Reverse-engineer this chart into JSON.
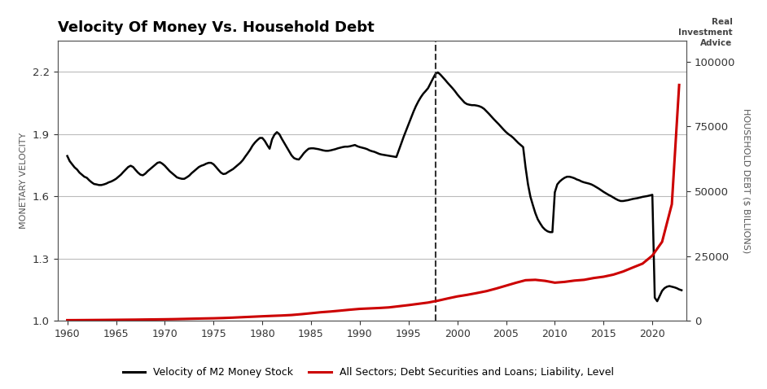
{
  "title": "Velocity Of Money Vs. Household Debt",
  "ylabel_left": "MONETARY VELOCITY",
  "ylabel_right": "HOUSEHOLD DEBT ($ BILLIONS)",
  "dashed_line_x": 1997.75,
  "ylim_left": [
    1.0,
    2.35
  ],
  "ylim_right": [
    0,
    108000
  ],
  "yticks_left": [
    1.0,
    1.3,
    1.6,
    1.9,
    2.2
  ],
  "yticks_right": [
    0,
    25000,
    50000,
    75000,
    100000
  ],
  "xticks": [
    1960,
    1965,
    1970,
    1975,
    1980,
    1985,
    1990,
    1995,
    2000,
    2005,
    2010,
    2015,
    2020
  ],
  "xlim": [
    1959.0,
    2023.5
  ],
  "velocity_color": "#000000",
  "debt_color": "#cc0000",
  "background_color": "#ffffff",
  "grid_color": "#bbbbbb",
  "legend_label_velocity": "Velocity of M2 Money Stock",
  "legend_label_debt": "All Sectors; Debt Securities and Loans; Liability, Level",
  "velocity_data": {
    "years": [
      1960.0,
      1960.25,
      1960.5,
      1960.75,
      1961.0,
      1961.25,
      1961.5,
      1961.75,
      1962.0,
      1962.25,
      1962.5,
      1962.75,
      1963.0,
      1963.25,
      1963.5,
      1963.75,
      1964.0,
      1964.25,
      1964.5,
      1964.75,
      1965.0,
      1965.25,
      1965.5,
      1965.75,
      1966.0,
      1966.25,
      1966.5,
      1966.75,
      1967.0,
      1967.25,
      1967.5,
      1967.75,
      1968.0,
      1968.25,
      1968.5,
      1968.75,
      1969.0,
      1969.25,
      1969.5,
      1969.75,
      1970.0,
      1970.25,
      1970.5,
      1970.75,
      1971.0,
      1971.25,
      1971.5,
      1971.75,
      1972.0,
      1972.25,
      1972.5,
      1972.75,
      1973.0,
      1973.25,
      1973.5,
      1973.75,
      1974.0,
      1974.25,
      1974.5,
      1974.75,
      1975.0,
      1975.25,
      1975.5,
      1975.75,
      1976.0,
      1976.25,
      1976.5,
      1976.75,
      1977.0,
      1977.25,
      1977.5,
      1977.75,
      1978.0,
      1978.25,
      1978.5,
      1978.75,
      1979.0,
      1979.25,
      1979.5,
      1979.75,
      1980.0,
      1980.25,
      1980.5,
      1980.75,
      1981.0,
      1981.25,
      1981.5,
      1981.75,
      1982.0,
      1982.25,
      1982.5,
      1982.75,
      1983.0,
      1983.25,
      1983.5,
      1983.75,
      1984.0,
      1984.25,
      1984.5,
      1984.75,
      1985.0,
      1985.25,
      1985.5,
      1985.75,
      1986.0,
      1986.25,
      1986.5,
      1986.75,
      1987.0,
      1987.25,
      1987.5,
      1987.75,
      1988.0,
      1988.25,
      1988.5,
      1988.75,
      1989.0,
      1989.25,
      1989.5,
      1989.75,
      1990.0,
      1990.25,
      1990.5,
      1990.75,
      1991.0,
      1991.25,
      1991.5,
      1991.75,
      1992.0,
      1992.25,
      1992.5,
      1992.75,
      1993.0,
      1993.25,
      1993.5,
      1993.75,
      1994.0,
      1994.25,
      1994.5,
      1994.75,
      1995.0,
      1995.25,
      1995.5,
      1995.75,
      1996.0,
      1996.25,
      1996.5,
      1996.75,
      1997.0,
      1997.25,
      1997.5,
      1997.75,
      1998.0,
      1998.25,
      1998.5,
      1998.75,
      1999.0,
      1999.25,
      1999.5,
      1999.75,
      2000.0,
      2000.25,
      2000.5,
      2000.75,
      2001.0,
      2001.25,
      2001.5,
      2001.75,
      2002.0,
      2002.25,
      2002.5,
      2002.75,
      2003.0,
      2003.25,
      2003.5,
      2003.75,
      2004.0,
      2004.25,
      2004.5,
      2004.75,
      2005.0,
      2005.25,
      2005.5,
      2005.75,
      2006.0,
      2006.25,
      2006.5,
      2006.75,
      2007.0,
      2007.25,
      2007.5,
      2007.75,
      2008.0,
      2008.25,
      2008.5,
      2008.75,
      2009.0,
      2009.25,
      2009.5,
      2009.75,
      2010.0,
      2010.25,
      2010.5,
      2010.75,
      2011.0,
      2011.25,
      2011.5,
      2011.75,
      2012.0,
      2012.25,
      2012.5,
      2012.75,
      2013.0,
      2013.25,
      2013.5,
      2013.75,
      2014.0,
      2014.25,
      2014.5,
      2014.75,
      2015.0,
      2015.25,
      2015.5,
      2015.75,
      2016.0,
      2016.25,
      2016.5,
      2016.75,
      2017.0,
      2017.25,
      2017.5,
      2017.75,
      2018.0,
      2018.25,
      2018.5,
      2018.75,
      2019.0,
      2019.25,
      2019.5,
      2019.75,
      2020.0,
      2020.25,
      2020.5,
      2020.75,
      2021.0,
      2021.25,
      2021.5,
      2021.75,
      2022.0,
      2022.25,
      2022.5,
      2022.75,
      2023.0
    ],
    "values": [
      1.795,
      1.77,
      1.755,
      1.74,
      1.73,
      1.715,
      1.705,
      1.695,
      1.69,
      1.678,
      1.668,
      1.66,
      1.658,
      1.655,
      1.655,
      1.658,
      1.662,
      1.668,
      1.672,
      1.678,
      1.685,
      1.695,
      1.705,
      1.718,
      1.73,
      1.742,
      1.748,
      1.742,
      1.728,
      1.715,
      1.705,
      1.702,
      1.71,
      1.722,
      1.732,
      1.742,
      1.752,
      1.762,
      1.765,
      1.758,
      1.748,
      1.735,
      1.722,
      1.712,
      1.702,
      1.692,
      1.688,
      1.685,
      1.685,
      1.692,
      1.7,
      1.712,
      1.722,
      1.732,
      1.742,
      1.748,
      1.752,
      1.758,
      1.762,
      1.762,
      1.755,
      1.742,
      1.728,
      1.715,
      1.708,
      1.71,
      1.718,
      1.725,
      1.732,
      1.742,
      1.752,
      1.762,
      1.775,
      1.792,
      1.808,
      1.825,
      1.845,
      1.86,
      1.872,
      1.882,
      1.882,
      1.868,
      1.848,
      1.83,
      1.875,
      1.898,
      1.91,
      1.9,
      1.878,
      1.858,
      1.838,
      1.818,
      1.798,
      1.785,
      1.78,
      1.778,
      1.792,
      1.808,
      1.82,
      1.83,
      1.832,
      1.832,
      1.83,
      1.828,
      1.825,
      1.822,
      1.82,
      1.82,
      1.822,
      1.825,
      1.828,
      1.832,
      1.835,
      1.838,
      1.84,
      1.84,
      1.842,
      1.845,
      1.848,
      1.842,
      1.838,
      1.835,
      1.832,
      1.828,
      1.822,
      1.818,
      1.815,
      1.81,
      1.805,
      1.802,
      1.8,
      1.798,
      1.796,
      1.794,
      1.792,
      1.79,
      1.822,
      1.855,
      1.888,
      1.918,
      1.948,
      1.978,
      2.008,
      2.035,
      2.058,
      2.078,
      2.095,
      2.108,
      2.122,
      2.145,
      2.168,
      2.19,
      2.198,
      2.188,
      2.175,
      2.162,
      2.148,
      2.135,
      2.122,
      2.108,
      2.092,
      2.078,
      2.065,
      2.052,
      2.045,
      2.042,
      2.04,
      2.04,
      2.038,
      2.035,
      2.03,
      2.022,
      2.01,
      1.998,
      1.985,
      1.972,
      1.96,
      1.948,
      1.935,
      1.922,
      1.91,
      1.9,
      1.892,
      1.882,
      1.87,
      1.858,
      1.848,
      1.838,
      1.74,
      1.658,
      1.598,
      1.558,
      1.52,
      1.49,
      1.47,
      1.452,
      1.44,
      1.432,
      1.428,
      1.428,
      1.62,
      1.658,
      1.672,
      1.682,
      1.69,
      1.695,
      1.695,
      1.692,
      1.688,
      1.682,
      1.678,
      1.672,
      1.668,
      1.665,
      1.662,
      1.658,
      1.652,
      1.645,
      1.638,
      1.63,
      1.622,
      1.615,
      1.608,
      1.602,
      1.595,
      1.588,
      1.582,
      1.578,
      1.578,
      1.58,
      1.582,
      1.585,
      1.588,
      1.59,
      1.592,
      1.595,
      1.598,
      1.6,
      1.602,
      1.605,
      1.608,
      1.112,
      1.095,
      1.12,
      1.145,
      1.158,
      1.165,
      1.168,
      1.165,
      1.162,
      1.158,
      1.152,
      1.148
    ]
  },
  "debt_data": {
    "years": [
      1960.0,
      1961.0,
      1962.0,
      1963.0,
      1964.0,
      1965.0,
      1966.0,
      1967.0,
      1968.0,
      1969.0,
      1970.0,
      1971.0,
      1972.0,
      1973.0,
      1974.0,
      1975.0,
      1976.0,
      1977.0,
      1978.0,
      1979.0,
      1980.0,
      1981.0,
      1982.0,
      1983.0,
      1984.0,
      1985.0,
      1986.0,
      1987.0,
      1988.0,
      1989.0,
      1990.0,
      1991.0,
      1992.0,
      1993.0,
      1994.0,
      1995.0,
      1996.0,
      1997.0,
      1998.0,
      1999.0,
      2000.0,
      2001.0,
      2002.0,
      2003.0,
      2004.0,
      2005.0,
      2006.0,
      2007.0,
      2008.0,
      2009.0,
      2010.0,
      2011.0,
      2012.0,
      2013.0,
      2014.0,
      2015.0,
      2016.0,
      2017.0,
      2018.0,
      2019.0,
      2020.0,
      2021.0,
      2022.0,
      2022.75
    ],
    "values": [
      290,
      310,
      335,
      362,
      392,
      425,
      460,
      495,
      545,
      590,
      635,
      695,
      778,
      870,
      950,
      1020,
      1130,
      1275,
      1450,
      1620,
      1790,
      1950,
      2090,
      2280,
      2600,
      2970,
      3350,
      3630,
      3970,
      4330,
      4650,
      4820,
      4990,
      5220,
      5660,
      6100,
      6590,
      7080,
      7800,
      8650,
      9450,
      10050,
      10750,
      11500,
      12500,
      13600,
      14700,
      15700,
      15850,
      15450,
      14750,
      15050,
      15550,
      15850,
      16550,
      17050,
      17850,
      19050,
      20600,
      22100,
      25200,
      30500,
      45000,
      91000
    ]
  }
}
